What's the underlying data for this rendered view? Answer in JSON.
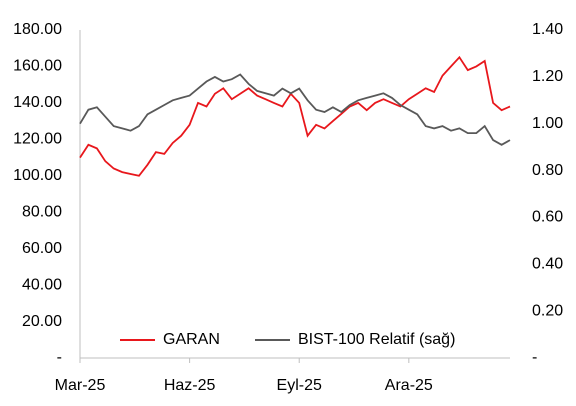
{
  "chart_data": {
    "type": "line",
    "categories": [
      "Mar-25",
      null,
      null,
      null,
      null,
      null,
      null,
      null,
      null,
      null,
      null,
      null,
      null,
      "Haz-25",
      null,
      null,
      null,
      null,
      null,
      null,
      null,
      null,
      null,
      null,
      null,
      null,
      "Eyl-25",
      null,
      null,
      null,
      null,
      null,
      null,
      null,
      null,
      null,
      null,
      null,
      null,
      "Ara-25",
      null,
      null,
      null,
      null,
      null,
      null,
      null,
      null,
      null,
      null,
      null,
      null
    ],
    "series": [
      {
        "name": "GARAN",
        "color": "#e8171c",
        "axis": "y",
        "values": [
          110,
          117,
          115,
          108,
          104,
          102,
          101,
          100,
          106,
          113,
          112,
          118,
          122,
          128,
          140,
          138,
          145,
          148,
          142,
          145,
          148,
          144,
          142,
          140,
          138,
          145,
          140,
          122,
          128,
          126,
          130,
          134,
          138,
          140,
          136,
          140,
          142,
          140,
          138,
          142,
          145,
          148,
          146,
          155,
          160,
          165,
          158,
          160,
          163,
          140,
          136,
          138
        ]
      },
      {
        "name": "BIST-100 Relatif (sağ)",
        "color": "#595959",
        "axis": "y2",
        "values": [
          1.0,
          1.06,
          1.07,
          1.03,
          0.99,
          0.98,
          0.97,
          0.99,
          1.04,
          1.06,
          1.08,
          1.1,
          1.11,
          1.12,
          1.15,
          1.18,
          1.2,
          1.18,
          1.19,
          1.21,
          1.17,
          1.14,
          1.13,
          1.12,
          1.15,
          1.13,
          1.15,
          1.1,
          1.06,
          1.05,
          1.07,
          1.05,
          1.08,
          1.1,
          1.11,
          1.12,
          1.13,
          1.11,
          1.08,
          1.06,
          1.04,
          0.99,
          0.98,
          0.99,
          0.97,
          0.98,
          0.96,
          0.96,
          0.99,
          0.93,
          0.91,
          0.93
        ]
      }
    ],
    "ylim": [
      0,
      180
    ],
    "yticks": [
      {
        "value": 0,
        "label": "-"
      },
      {
        "value": 20,
        "label": "20.00"
      },
      {
        "value": 40,
        "label": "40.00"
      },
      {
        "value": 60,
        "label": "60.00"
      },
      {
        "value": 80,
        "label": "80.00"
      },
      {
        "value": 100,
        "label": "100.00"
      },
      {
        "value": 120,
        "label": "120.00"
      },
      {
        "value": 140,
        "label": "140.00"
      },
      {
        "value": 160,
        "label": "160.00"
      },
      {
        "value": 180,
        "label": "180.00"
      }
    ],
    "y2lim": [
      0,
      1.4
    ],
    "y2ticks": [
      {
        "value": 0,
        "label": "-"
      },
      {
        "value": 0.2,
        "label": "0.20"
      },
      {
        "value": 0.4,
        "label": "0.40"
      },
      {
        "value": 0.6,
        "label": "0.60"
      },
      {
        "value": 0.8,
        "label": "0.80"
      },
      {
        "value": 1.0,
        "label": "1.00"
      },
      {
        "value": 1.2,
        "label": "1.20"
      },
      {
        "value": 1.4,
        "label": "1.40"
      }
    ],
    "legend": "bottom"
  }
}
